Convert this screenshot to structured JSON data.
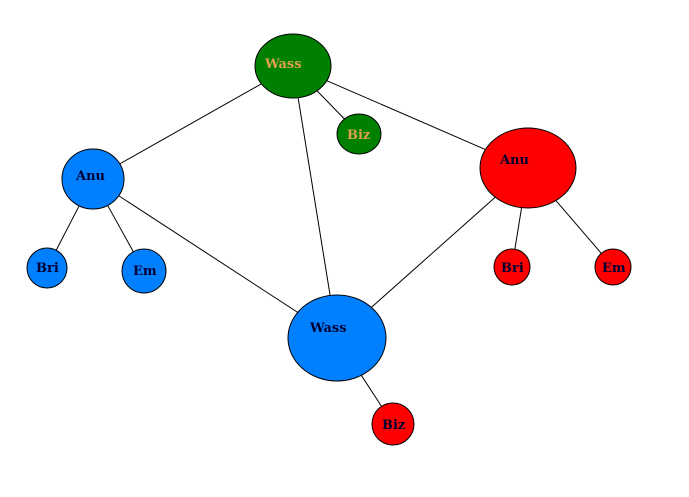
{
  "colors": {
    "green": "#008000",
    "red": "#ff0000",
    "blue": "#0080ff",
    "label_on_green": "#e0a050",
    "label_dark": "#000033"
  },
  "nodes": [
    {
      "id": "wass_g",
      "label": "Wass",
      "color": "green"
    },
    {
      "id": "biz_g",
      "label": "Biz",
      "color": "green"
    },
    {
      "id": "anu_r",
      "label": "Anu",
      "color": "red"
    },
    {
      "id": "bri_r",
      "label": "Bri",
      "color": "red"
    },
    {
      "id": "em_r",
      "label": "Em",
      "color": "red"
    },
    {
      "id": "anu_b",
      "label": "Anu",
      "color": "blue"
    },
    {
      "id": "bri_b",
      "label": "Bri",
      "color": "blue"
    },
    {
      "id": "em_b",
      "label": "Em",
      "color": "blue"
    },
    {
      "id": "wass_b",
      "label": "Wass",
      "color": "blue"
    },
    {
      "id": "biz_r",
      "label": "Biz",
      "color": "red"
    }
  ],
  "edges": [
    [
      "wass_g",
      "anu_b"
    ],
    [
      "wass_g",
      "biz_g"
    ],
    [
      "wass_g",
      "anu_r"
    ],
    [
      "wass_g",
      "wass_b"
    ],
    [
      "anu_b",
      "bri_b"
    ],
    [
      "anu_b",
      "em_b"
    ],
    [
      "anu_b",
      "wass_b"
    ],
    [
      "anu_r",
      "wass_b"
    ],
    [
      "anu_r",
      "bri_r"
    ],
    [
      "anu_r",
      "em_r"
    ],
    [
      "wass_b",
      "biz_r"
    ]
  ]
}
